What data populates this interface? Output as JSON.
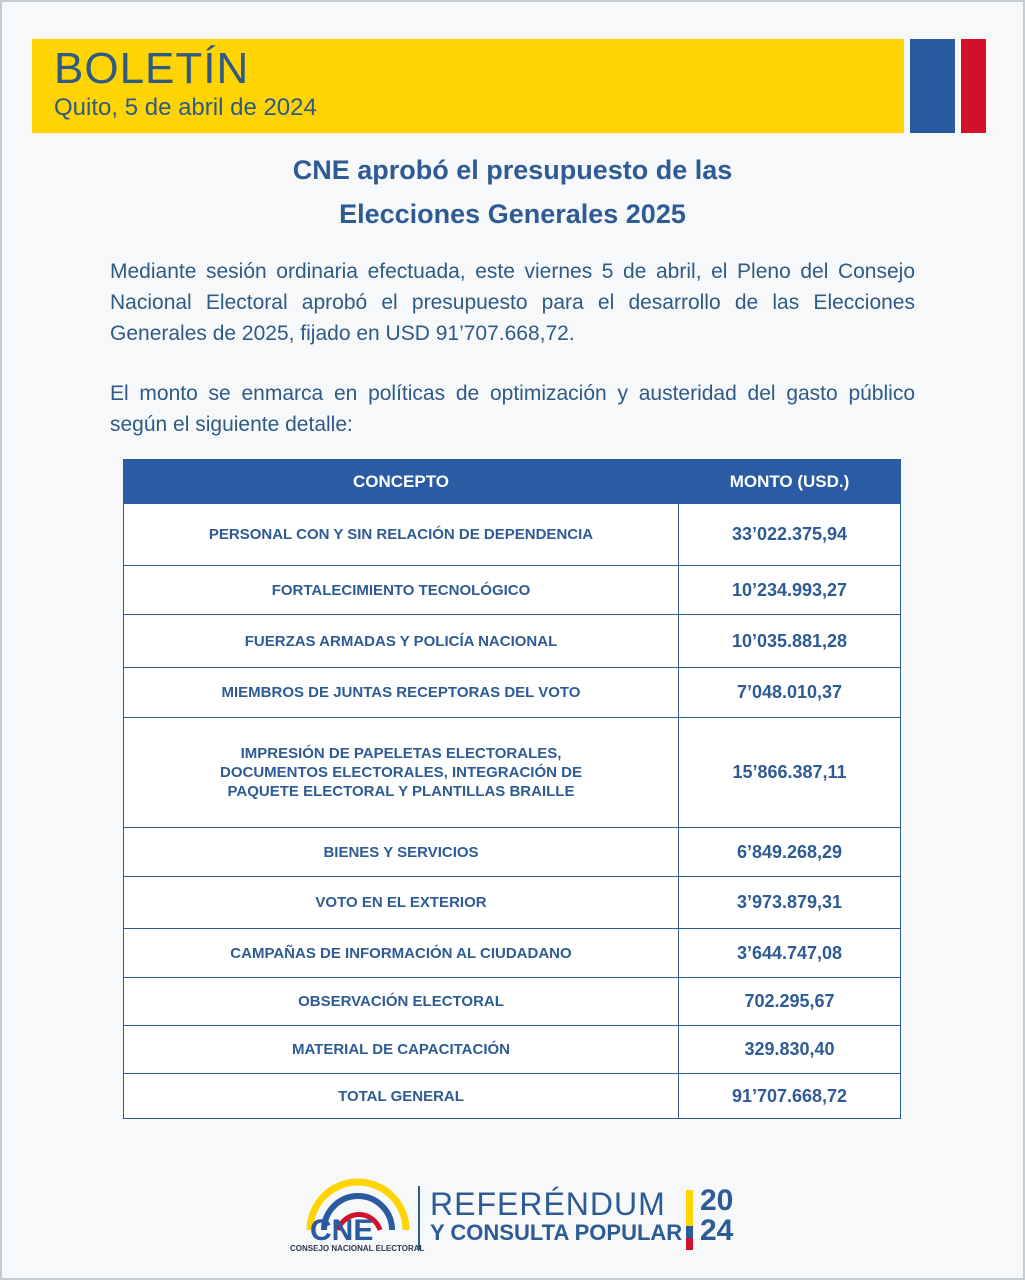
{
  "header": {
    "title": "BOLETÍN",
    "date": "Quito, 5 de abril de 2024"
  },
  "headline": [
    "CNE aprobó el presupuesto de las",
    "Elecciones Generales 2025"
  ],
  "paragraphs": [
    "Mediante sesión ordinaria efectuada, este viernes 5 de abril, el Pleno del Consejo Nacional Electoral aprobó el presupuesto para el desarrollo de las Elecciones Generales de 2025, fijado en USD 91’707.668,72.",
    "El monto se enmarca en políticas de optimización y austeridad del gasto público según el siguiente detalle:"
  ],
  "table": {
    "headers": [
      "CONCEPTO",
      "MONTO (USD.)"
    ],
    "rows": [
      {
        "concepto": "PERSONAL CON Y SIN RELACIÓN DE DEPENDENCIA",
        "monto": "33’022.375,94"
      },
      {
        "concepto": "FORTALECIMIENTO TECNOLÓGICO",
        "monto": "10’234.993,27"
      },
      {
        "concepto": "FUERZAS ARMADAS Y POLICÍA NACIONAL",
        "monto": "10’035.881,28"
      },
      {
        "concepto": "MIEMBROS DE JUNTAS RECEPTORAS DEL VOTO",
        "monto": "7’048.010,37"
      },
      {
        "concepto": "IMPRESIÓN DE PAPELETAS ELECTORALES, DOCUMENTOS ELECTORALES, INTEGRACIÓN DE PAQUETE ELECTORAL Y PLANTILLAS BRAILLE",
        "monto": "15’866.387,11"
      },
      {
        "concepto": "BIENES Y SERVICIOS",
        "monto": "6’849.268,29"
      },
      {
        "concepto": "VOTO EN EL EXTERIOR",
        "monto": "3’973.879,31"
      },
      {
        "concepto": "CAMPAÑAS DE INFORMACIÓN AL CIUDADANO",
        "monto": "3’644.747,08"
      },
      {
        "concepto": "OBSERVACIÓN ELECTORAL",
        "monto": "702.295,67"
      },
      {
        "concepto": "MATERIAL DE CAPACITACIÓN",
        "monto": "329.830,40"
      },
      {
        "concepto": "TOTAL GENERAL",
        "monto": "91’707.668,72"
      }
    ]
  },
  "footer": {
    "logo": "CNE",
    "logo_sub": "CONSEJO NACIONAL ELECTORAL",
    "line1": "REFERÉNDUM",
    "line2": "Y CONSULTA POPULAR",
    "year_top": "20",
    "year_bottom": "24"
  },
  "colors": {
    "yellow": "#ffd400",
    "blue": "#2a5aa0",
    "red": "#d2102a",
    "text": "#2e5b94"
  }
}
